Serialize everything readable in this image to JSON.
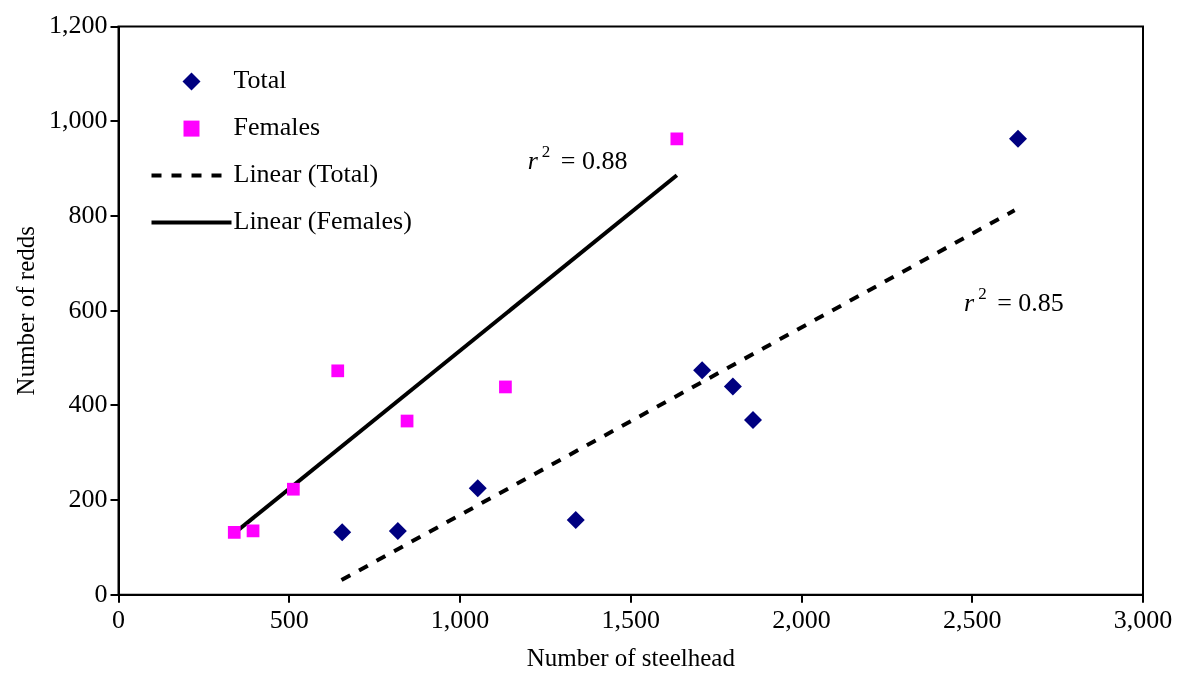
{
  "chart_data": {
    "type": "scatter",
    "xlabel": "Number of steelhead",
    "ylabel": "Number of redds",
    "xlim": [
      0,
      3000
    ],
    "xticks": [
      0,
      500,
      {
        "value": 1000,
        "label": "1,000"
      },
      {
        "value": 1500,
        "label": "1,500"
      },
      {
        "value": 2000,
        "label": "2,000"
      },
      {
        "value": 2500,
        "label": "2,500"
      },
      {
        "value": 3000,
        "label": "3,000"
      }
    ],
    "ylim": [
      0,
      1200
    ],
    "yticks": [
      0,
      200,
      400,
      600,
      800,
      {
        "value": 1000,
        "label": "1,000"
      },
      {
        "value": 1200,
        "label": "1,200"
      }
    ],
    "grid": false,
    "legend": "top left",
    "series": [
      {
        "name": "Total",
        "type": "scatter",
        "marker": "diamond",
        "color": "#000080",
        "x": [
          655,
          818,
          1052,
          1339,
          1709,
          1799,
          1858,
          2634
        ],
        "values": [
          132,
          135,
          225,
          158,
          474,
          440,
          369,
          963
        ]
      },
      {
        "name": "Females",
        "type": "scatter",
        "marker": "square",
        "color": "#ff00ff",
        "x": [
          339,
          394,
          512,
          642,
          845,
          1133,
          1635
        ],
        "values": [
          132,
          135,
          223,
          473,
          367,
          439,
          963
        ]
      },
      {
        "name": "Linear (Total)",
        "type": "line",
        "marker": "none",
        "line_style": "dashed",
        "color": "#000000",
        "x": [
          653,
          2624
        ],
        "values": [
          31,
          812
        ]
      },
      {
        "name": "Linear (Females)",
        "type": "line",
        "marker": "none",
        "line_style": "solid",
        "color": "#000000",
        "x": [
          339,
          1635
        ],
        "values": [
          130,
          886
        ]
      }
    ],
    "annotations": [
      "r$^{2}$ = 0.88",
      "r$^{2}$ = 0.85"
    ]
  }
}
